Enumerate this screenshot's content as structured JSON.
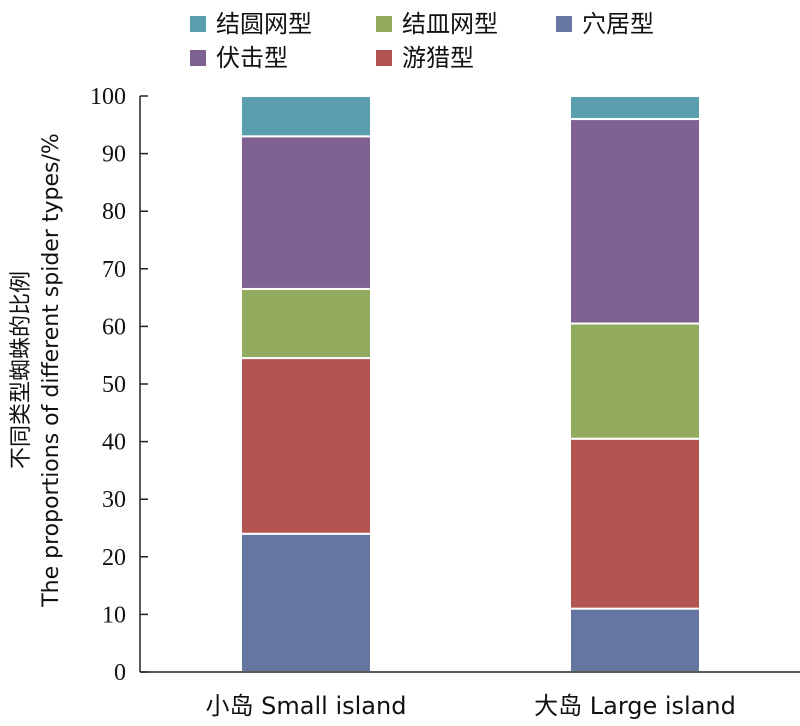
{
  "chart_data": {
    "type": "bar",
    "stacked": true,
    "categories": [
      "小岛 Small island",
      "大岛 Large island"
    ],
    "series": [
      {
        "name": "穴居型",
        "color": "#6577a0",
        "values": [
          24,
          11
        ]
      },
      {
        "name": "游猎型",
        "color": "#b25450",
        "values": [
          30.5,
          29.5
        ]
      },
      {
        "name": "结皿网型",
        "color": "#93ab5e",
        "values": [
          12,
          20
        ]
      },
      {
        "name": "伏击型",
        "color": "#7f6292",
        "values": [
          26.5,
          35.5
        ]
      },
      {
        "name": "结圆网型",
        "color": "#5b9fae",
        "values": [
          7,
          4
        ]
      }
    ],
    "legend_order": [
      "结圆网型",
      "结皿网型",
      "穴居型",
      "伏击型",
      "游猎型"
    ],
    "ylabel_cn": "不同类型蜘蛛的比例",
    "ylabel_en": "The proportions of different spider types/%",
    "ylim": [
      0,
      100
    ],
    "yticks": [
      0,
      10,
      20,
      30,
      40,
      50,
      60,
      70,
      80,
      90,
      100
    ],
    "legend_position": "top",
    "grid": false
  }
}
